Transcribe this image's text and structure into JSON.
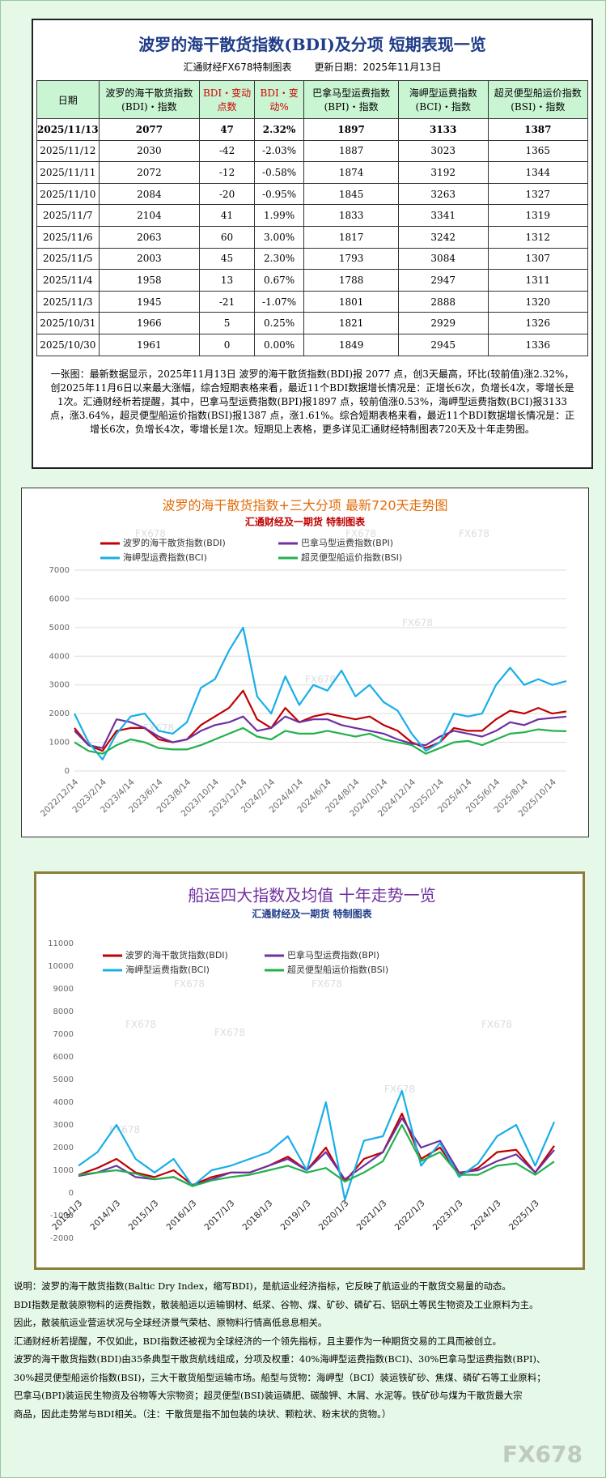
{
  "header": {
    "title": "波罗的海干散货指数(BDI)及分项  短期表现一览",
    "subtitle": "汇通财经FX678特制图表",
    "date": "更新日期：2025年11月13日"
  },
  "table": {
    "columns": [
      "日期",
      "波罗的海干散货指数(BDI)・指数",
      "BDI・变动点数",
      "BDI・变动%",
      "巴拿马型运费指数(BPI)・指数",
      "海岬型运费指数(BCI)・指数",
      "超灵便型船运价指数(BSI)・指数"
    ],
    "rows": [
      [
        "2025/11/13",
        "2077",
        "47",
        "2.32%",
        "1897",
        "3133",
        "1387"
      ],
      [
        "2025/11/12",
        "2030",
        "-42",
        "-2.03%",
        "1887",
        "3023",
        "1365"
      ],
      [
        "2025/11/11",
        "2072",
        "-12",
        "-0.58%",
        "1874",
        "3192",
        "1344"
      ],
      [
        "2025/11/10",
        "2084",
        "-20",
        "-0.95%",
        "1845",
        "3263",
        "1327"
      ],
      [
        "2025/11/7",
        "2104",
        "41",
        "1.99%",
        "1833",
        "3341",
        "1319"
      ],
      [
        "2025/11/6",
        "2063",
        "60",
        "3.00%",
        "1817",
        "3242",
        "1312"
      ],
      [
        "2025/11/5",
        "2003",
        "45",
        "2.30%",
        "1793",
        "3084",
        "1307"
      ],
      [
        "2025/11/4",
        "1958",
        "13",
        "0.67%",
        "1788",
        "2947",
        "1311"
      ],
      [
        "2025/11/3",
        "1945",
        "-21",
        "-1.07%",
        "1801",
        "2888",
        "1320"
      ],
      [
        "2025/10/31",
        "1966",
        "5",
        "0.25%",
        "1821",
        "2929",
        "1326"
      ],
      [
        "2025/10/30",
        "1961",
        "0",
        "0.00%",
        "1849",
        "2945",
        "1336"
      ]
    ]
  },
  "note": "一张图：最新数据显示，2025年11月13日 波罗的海干散货指数(BDI)报 2077 点，创3天最高，环比(较前值)涨2.32%，创2025年11月6日以来最大涨幅，综合短期表格来看，最近11个BDI数据增长情况是：正增长6次，负增长4次，零增长是1次。汇通财经析若提醒，其中，巴拿马型运费指数(BPI)报1897 点，较前值涨0.53%，海岬型运费指数(BCI)报3133 点，涨3.64%，超灵便型船运价指数(BSI)报1387 点，涨1.61%。综合短期表格来看，最近11个BDI数据增长情况是：正增长6次，负增长4次，零增长是1次。短期见上表格，更多详见汇通财经特制图表720天及十年走势图。",
  "chart_data": [
    {
      "type": "line",
      "title": "波罗的海干散货指数+三大分项  最新720天走势图",
      "subtitle": "汇通财经及一期货  特制图表",
      "watermark": "FX678",
      "categories": [
        "2022/12/14",
        null,
        "2023/2/14",
        null,
        "2023/4/14",
        null,
        "2023/6/14",
        null,
        "2023/8/14",
        null,
        "2023/10/14",
        null,
        "2023/12/14",
        null,
        "2024/2/14",
        null,
        "2024/4/14",
        null,
        "2024/6/14",
        null,
        "2024/8/14",
        null,
        "2024/10/14",
        null,
        "2024/12/14",
        null,
        "2025/2/14",
        null,
        "2025/4/14",
        null,
        "2025/6/14",
        null,
        "2025/8/14",
        null,
        "2025/10/14",
        null
      ],
      "series": [
        {
          "name": "波罗的海干散货指数(BDI)",
          "color": "#c00000",
          "values": [
            1500,
            900,
            700,
            1400,
            1500,
            1500,
            1100,
            1000,
            1100,
            1600,
            1900,
            2200,
            2800,
            1800,
            1500,
            2200,
            1700,
            1900,
            2000,
            1900,
            1800,
            1900,
            1600,
            1400,
            1000,
            800,
            1000,
            1500,
            1400,
            1400,
            1800,
            2100,
            2000,
            2200,
            2000,
            2077
          ]
        },
        {
          "name": "巴拿马型运费指数(BPI)",
          "color": "#7030a0",
          "values": [
            1400,
            900,
            800,
            1800,
            1700,
            1500,
            1200,
            1000,
            1100,
            1400,
            1600,
            1700,
            1900,
            1400,
            1500,
            1900,
            1700,
            1800,
            1800,
            1600,
            1500,
            1400,
            1300,
            1100,
            950,
            900,
            1200,
            1400,
            1300,
            1200,
            1400,
            1700,
            1600,
            1800,
            1850,
            1897
          ]
        },
        {
          "name": "海岬型运费指数(BCI)",
          "color": "#18aee8",
          "values": [
            2000,
            1000,
            400,
            1300,
            1900,
            2000,
            1400,
            1300,
            1700,
            2900,
            3200,
            4200,
            5000,
            2600,
            2000,
            3300,
            2300,
            3000,
            2800,
            3500,
            2600,
            3000,
            2400,
            2100,
            1300,
            700,
            1000,
            2000,
            1900,
            2000,
            3000,
            3600,
            3000,
            3200,
            3000,
            3133
          ]
        },
        {
          "name": "超灵便型船运价指数(BSI)",
          "color": "#22b14c",
          "values": [
            1000,
            700,
            600,
            900,
            1100,
            1000,
            800,
            750,
            750,
            900,
            1100,
            1300,
            1500,
            1200,
            1100,
            1400,
            1300,
            1300,
            1400,
            1300,
            1200,
            1300,
            1100,
            1000,
            900,
            600,
            800,
            1000,
            1050,
            900,
            1100,
            1300,
            1350,
            1450,
            1400,
            1387
          ]
        }
      ],
      "ylim": [
        0,
        7000
      ],
      "yticks": [
        0,
        1000,
        2000,
        3000,
        4000,
        5000,
        6000,
        7000
      ],
      "grid": true,
      "legend": "upper left"
    },
    {
      "type": "line",
      "title": "船运四大指数及均值 十年走势一览",
      "subtitle": "汇通财经及一期货 特制图表",
      "watermark": "FX678",
      "categories": [
        "2013/1/3",
        null,
        "2014/1/3",
        null,
        "2015/1/3",
        null,
        "2016/1/3",
        null,
        "2017/1/3",
        null,
        "2018/1/3",
        null,
        "2019/1/3",
        null,
        "2020/1/3",
        null,
        "2021/1/3",
        null,
        "2022/1/3",
        null,
        "2023/1/3",
        null,
        "2024/1/3",
        null,
        "2025/1/3",
        null
      ],
      "series": [
        {
          "name": "波罗的海干散货指数(BDI)",
          "color": "#c00000",
          "values": [
            800,
            1100,
            1500,
            900,
            700,
            1000,
            350,
            700,
            900,
            900,
            1200,
            1600,
            1000,
            2000,
            500,
            1500,
            1800,
            3500,
            1500,
            2000,
            800,
            1100,
            1800,
            1900,
            900,
            2077
          ]
        },
        {
          "name": "巴拿马型运费指数(BPI)",
          "color": "#7030a0",
          "values": [
            750,
            900,
            1200,
            700,
            600,
            700,
            300,
            600,
            900,
            900,
            1200,
            1500,
            1000,
            1800,
            600,
            1200,
            1800,
            3300,
            2000,
            2300,
            900,
            1000,
            1400,
            1700,
            900,
            1897
          ]
        },
        {
          "name": "海岬型运费指数(BCI)",
          "color": "#18aee8",
          "values": [
            1200,
            1800,
            3000,
            1500,
            900,
            1500,
            300,
            1000,
            1200,
            1500,
            1800,
            2500,
            1000,
            4000,
            -300,
            2300,
            2500,
            4500,
            1200,
            2200,
            700,
            1300,
            2500,
            3000,
            1200,
            3133
          ]
        },
        {
          "name": "超灵便型船运价指数(BSI)",
          "color": "#22b14c",
          "values": [
            800,
            900,
            1000,
            850,
            600,
            700,
            300,
            550,
            700,
            800,
            1000,
            1200,
            900,
            1100,
            500,
            900,
            1400,
            3000,
            1400,
            1800,
            800,
            800,
            1200,
            1300,
            800,
            1387
          ]
        }
      ],
      "ylim": [
        -2000,
        11000
      ],
      "yticks": [
        -2000,
        -1000,
        0,
        1000,
        2000,
        3000,
        4000,
        5000,
        6000,
        7000,
        8000,
        9000,
        10000,
        11000
      ],
      "grid": false,
      "legend": "upper left"
    }
  ],
  "explanation": [
    "说明：波罗的海干散货指数(Baltic Dry Index，缩写BDI)，是航运业经济指标，它反映了航运业的干散货交易量的动态。",
    "BDI指数是散装原物料的运费指数，散装船运以运输钢材、纸浆、谷物、煤、矿砂、磷矿石、铝矾土等民生物资及工业原料为主。",
    "因此，散装航运业营运状况与全球经济景气荣枯、原物料行情高低息息相关。",
    "汇通财经析若提醒，不仅如此，BDI指数还被视为全球经济的一个领先指标，且主要作为一种期货交易的工具而被创立。",
    "波罗的海干散货指数(BDI)由35条典型干散货航线组成，分项及权重：40%海岬型运费指数(BCI)、30%巴拿马型运费指数(BPI)、",
    "30%超灵便型船运价指数(BSI)，三大干散货船型运输市场。船型与货物：海岬型（BCI）装运铁矿砂、焦煤、磷矿石等工业原料；",
    "巴拿马(BPI)装运民生物资及谷物等大宗物资；超灵便型(BSI)装运磷肥、碳酸钾、木屑、水泥等。铁矿砂与煤为干散货最大宗",
    "商品，因此走势常与BDI相关。（注：干散货是指不加包装的块状、颗粒状、粉末状的货物。）"
  ],
  "watermark": "FX678"
}
